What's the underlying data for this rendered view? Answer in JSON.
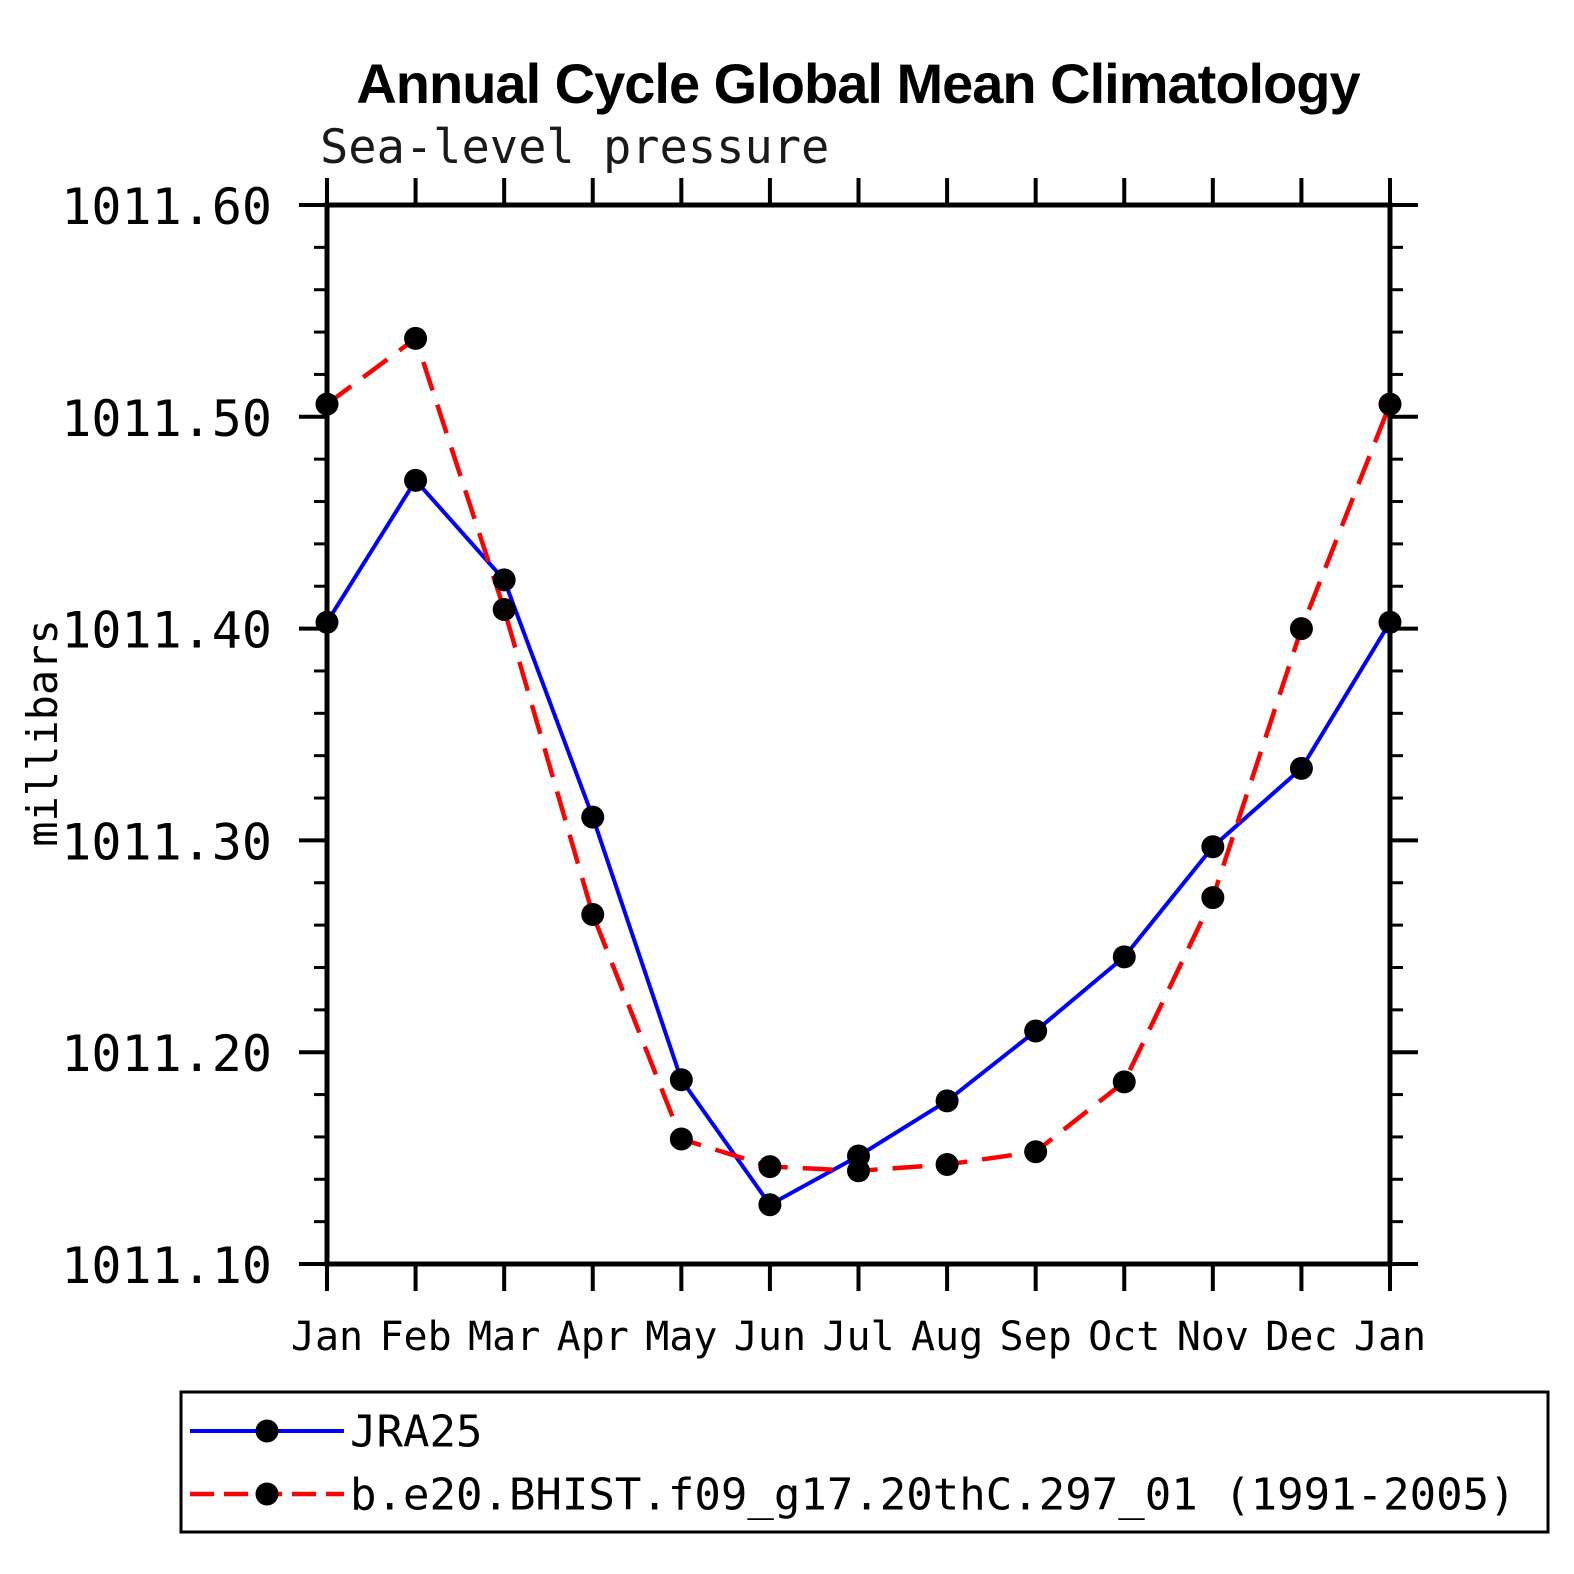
{
  "page": {
    "background": "#ffffff"
  },
  "header": {
    "title": "Annual Cycle Global Mean Climatology",
    "subtitle": "Sea-level pressure"
  },
  "chart_data": {
    "type": "line",
    "title": "Annual Cycle Global Mean Climatology",
    "subtitle": "Sea-level pressure",
    "xlabel": "",
    "ylabel": "millibars",
    "categories": [
      "Jan",
      "Feb",
      "Mar",
      "Apr",
      "May",
      "Jun",
      "Jul",
      "Aug",
      "Sep",
      "Oct",
      "Nov",
      "Dec",
      "Jan"
    ],
    "ylim": [
      1011.1,
      1011.6
    ],
    "ytick_major_step": 0.1,
    "ytick_minor_step": 0.02,
    "ytick_labels": [
      "1011.10",
      "1011.20",
      "1011.30",
      "1011.40",
      "1011.50",
      "1011.60"
    ],
    "grid": false,
    "legend_position": "bottom-left-box",
    "series": [
      {
        "name": "JRA25",
        "color": "#0000ff",
        "line_style": "solid",
        "marker": "filled-circle",
        "marker_color": "#000000",
        "values": [
          1011.403,
          1011.47,
          1011.423,
          1011.311,
          1011.187,
          1011.128,
          1011.151,
          1011.177,
          1011.21,
          1011.245,
          1011.297,
          1011.334,
          1011.403
        ]
      },
      {
        "name": "b.e20.BHIST.f09_g17.20thC.297_01 (1991-2005)",
        "color": "#ff0000",
        "line_style": "dashed",
        "marker": "filled-circle",
        "marker_color": "#000000",
        "values": [
          1011.506,
          1011.537,
          1011.409,
          1011.265,
          1011.159,
          1011.146,
          1011.144,
          1011.147,
          1011.153,
          1011.186,
          1011.273,
          1011.4,
          1011.506
        ]
      }
    ]
  },
  "legend": {
    "entries": [
      {
        "label": "JRA25"
      },
      {
        "label": "b.e20.BHIST.f09_g17.20thC.297_01 (1991-2005)"
      }
    ]
  },
  "colors": {
    "axis": "#000000",
    "text": "#000000",
    "background": "#ffffff"
  }
}
